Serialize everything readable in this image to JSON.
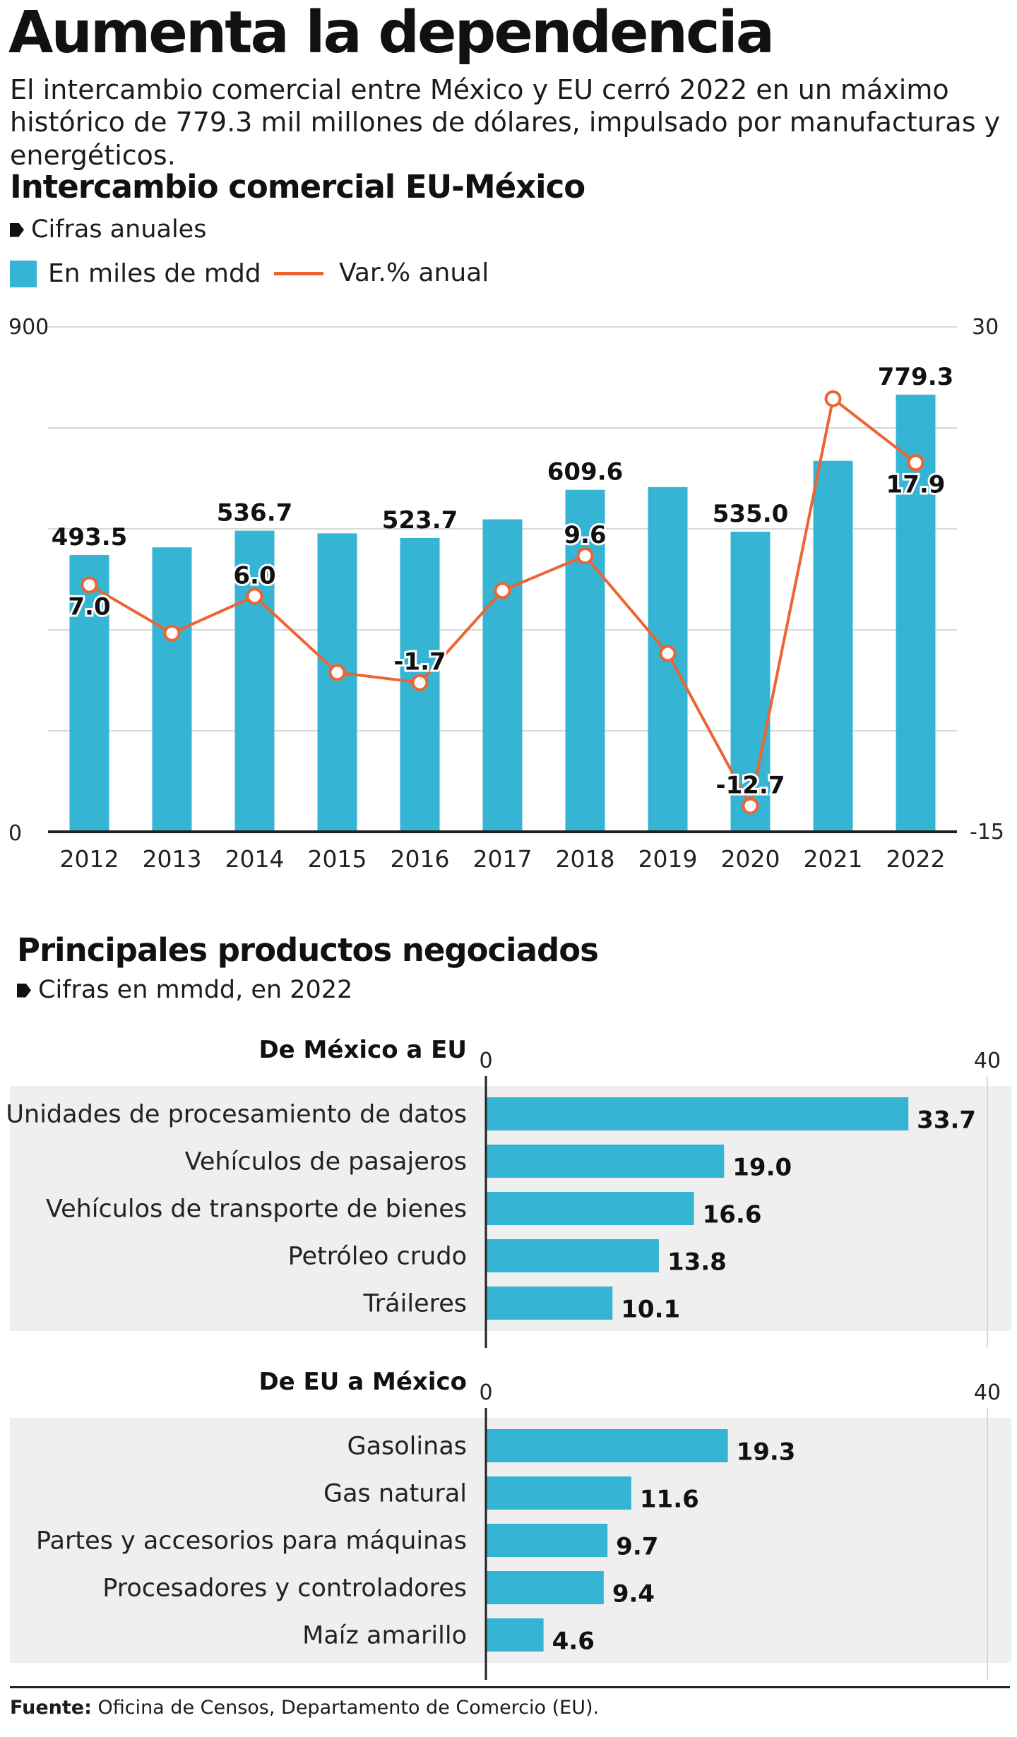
{
  "headline": "Aumenta la dependencia",
  "deck": "El intercambio comercial entre México y EU cerró 2022 en un máximo histórico de 779.3 mil millones de dólares, impulsado por manufacturas y energéticos.",
  "colors": {
    "bar": "#35b5d3",
    "line": "#ee6331",
    "panel": "#efefef",
    "grid": "#d8d8d8",
    "axis": "#222222"
  },
  "chart_data": [
    {
      "type": "bar+line",
      "title": "Intercambio comercial EU-México",
      "subtitle": "Cifras anuales",
      "legend": {
        "bar": "En miles de mdd",
        "line": "Var.% anual"
      },
      "categories": [
        "2012",
        "2013",
        "2014",
        "2015",
        "2016",
        "2017",
        "2018",
        "2019",
        "2020",
        "2021",
        "2022"
      ],
      "series": [
        {
          "name": "En miles de mdd",
          "type": "bar",
          "axis": "left",
          "values": [
            493.5,
            507.0,
            536.7,
            532.0,
            523.7,
            557.0,
            609.6,
            614.5,
            535.0,
            661.2,
            779.3
          ],
          "labels": [
            "493.5",
            "",
            "536.7",
            "",
            "523.7",
            "",
            "609.6",
            "",
            "535.0",
            "",
            "779.3"
          ]
        },
        {
          "name": "Var.% anual",
          "type": "line",
          "axis": "right",
          "values": [
            7.0,
            2.7,
            6.0,
            -0.8,
            -1.7,
            6.5,
            9.6,
            0.9,
            -12.7,
            23.6,
            17.9
          ],
          "labels": [
            "7.0",
            "",
            "6.0",
            "",
            "-1.7",
            "",
            "9.6",
            "",
            "-12.7",
            "",
            "17.9"
          ]
        }
      ],
      "y_left": {
        "min": 0,
        "max": 900,
        "ticks": [
          "0",
          "900"
        ]
      },
      "y_right": {
        "min": -15,
        "max": 30,
        "ticks": [
          "-15",
          "30"
        ]
      },
      "grid": true
    },
    {
      "type": "bar-horizontal",
      "title": "Principales productos negociados",
      "subtitle": "Cifras en mmdd, en 2022",
      "groups": [
        {
          "title": "De México a EU",
          "axis_min": "0",
          "axis_max": "40",
          "categories": [
            "Unidades de procesamiento de datos",
            "Vehículos de pasajeros",
            "Vehículos de transporte de bienes",
            "Petróleo crudo",
            "Tráileres"
          ],
          "values": [
            33.7,
            19.0,
            16.6,
            13.8,
            10.1
          ],
          "labels": [
            "33.7",
            "19.0",
            "16.6",
            "13.8",
            "10.1"
          ]
        },
        {
          "title": "De EU a México",
          "axis_min": "0",
          "axis_max": "40",
          "categories": [
            "Gasolinas",
            "Gas natural",
            "Partes y accesorios para máquinas",
            "Procesadores y controladores",
            "Maíz amarillo"
          ],
          "values": [
            19.3,
            11.6,
            9.7,
            9.4,
            4.6
          ],
          "labels": [
            "19.3",
            "11.6",
            "9.7",
            "9.4",
            "4.6"
          ]
        }
      ],
      "xlim": [
        0,
        40
      ]
    }
  ],
  "source": {
    "label": "Fuente:",
    "text": " Oficina de Censos, Departamento de Comercio (EU)."
  }
}
